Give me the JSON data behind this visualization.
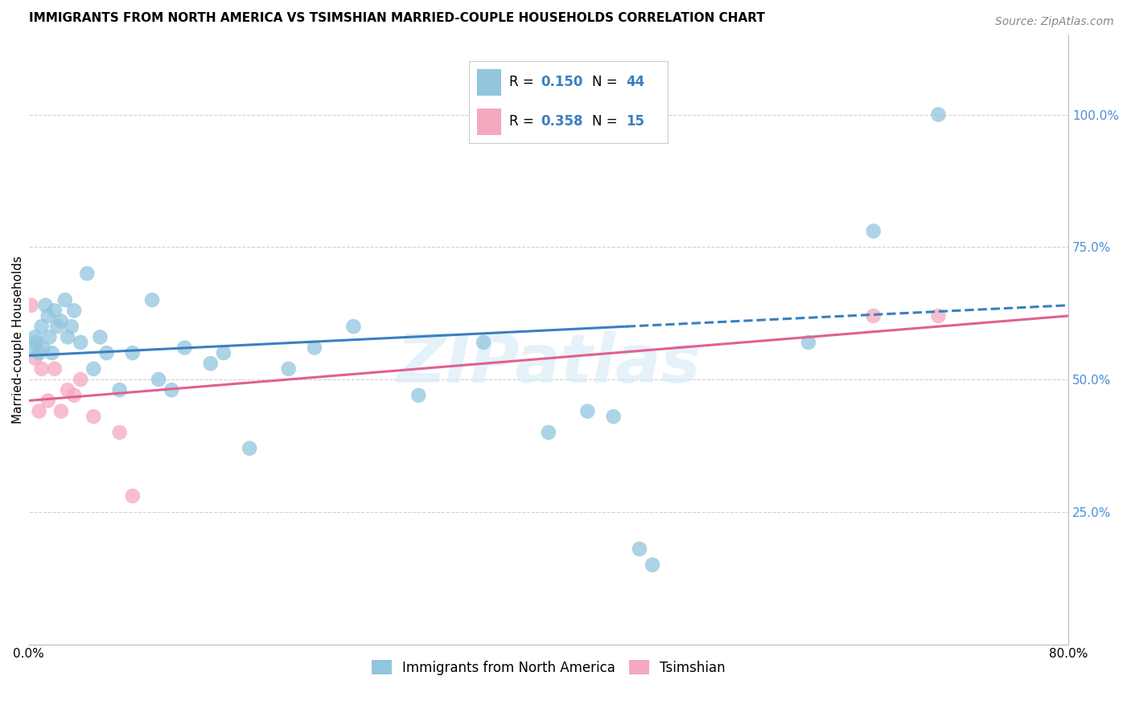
{
  "title": "IMMIGRANTS FROM NORTH AMERICA VS TSIMSHIAN MARRIED-COUPLE HOUSEHOLDS CORRELATION CHART",
  "source": "Source: ZipAtlas.com",
  "ylabel": "Married-couple Households",
  "legend_blue_r": "0.150",
  "legend_blue_n": "44",
  "legend_pink_r": "0.358",
  "legend_pink_n": "15",
  "bottom_legend_blue": "Immigrants from North America",
  "bottom_legend_pink": "Tsimshian",
  "blue_color": "#92c5de",
  "pink_color": "#f4a9be",
  "blue_line_color": "#3a7fc1",
  "pink_line_color": "#e06090",
  "legend_r_color_blue": "#3a7fc1",
  "legend_r_color_pink": "#3a7fc1",
  "background_color": "#ffffff",
  "grid_color": "#d0d0d0",
  "watermark": "ZIPatlas",
  "blue_points_x": [
    0.3,
    0.5,
    0.6,
    0.8,
    1.0,
    1.1,
    1.3,
    1.5,
    1.6,
    1.8,
    2.0,
    2.2,
    2.5,
    2.8,
    3.0,
    3.3,
    3.5,
    4.0,
    4.5,
    5.0,
    5.5,
    6.0,
    7.0,
    8.0,
    9.5,
    10.0,
    11.0,
    12.0,
    14.0,
    15.0,
    17.0,
    20.0,
    22.0,
    25.0,
    30.0,
    35.0,
    40.0,
    43.0,
    45.0,
    47.0,
    48.0,
    60.0,
    65.0,
    70.0
  ],
  "blue_points_y": [
    56.0,
    58.0,
    57.0,
    55.0,
    60.0,
    56.0,
    64.0,
    62.0,
    58.0,
    55.0,
    63.0,
    60.0,
    61.0,
    65.0,
    58.0,
    60.0,
    63.0,
    57.0,
    70.0,
    52.0,
    58.0,
    55.0,
    48.0,
    55.0,
    65.0,
    50.0,
    48.0,
    56.0,
    53.0,
    55.0,
    37.0,
    52.0,
    56.0,
    60.0,
    47.0,
    57.0,
    40.0,
    44.0,
    43.0,
    18.0,
    15.0,
    57.0,
    78.0,
    100.0
  ],
  "pink_points_x": [
    0.2,
    0.5,
    0.8,
    1.0,
    1.5,
    2.0,
    2.5,
    3.0,
    3.5,
    4.0,
    5.0,
    7.0,
    8.0,
    65.0,
    70.0
  ],
  "pink_points_y": [
    64.0,
    54.0,
    44.0,
    52.0,
    46.0,
    52.0,
    44.0,
    48.0,
    47.0,
    50.0,
    43.0,
    40.0,
    28.0,
    62.0,
    62.0
  ],
  "xlim": [
    0.0,
    80.0
  ],
  "ylim": [
    0.0,
    115.0
  ],
  "blue_trendline_x0": 0.0,
  "blue_trendline_x1": 46.0,
  "blue_trendline_y0": 54.5,
  "blue_trendline_y1": 60.0,
  "blue_dash_x0": 46.0,
  "blue_dash_x1": 80.0,
  "blue_dash_y0": 60.0,
  "blue_dash_y1": 64.0,
  "pink_trendline_x0": 0.0,
  "pink_trendline_x1": 80.0,
  "pink_trendline_y0": 46.0,
  "pink_trendline_y1": 62.0,
  "title_fontsize": 11,
  "source_fontsize": 10,
  "axis_label_fontsize": 11,
  "tick_fontsize": 11,
  "legend_fontsize": 12
}
